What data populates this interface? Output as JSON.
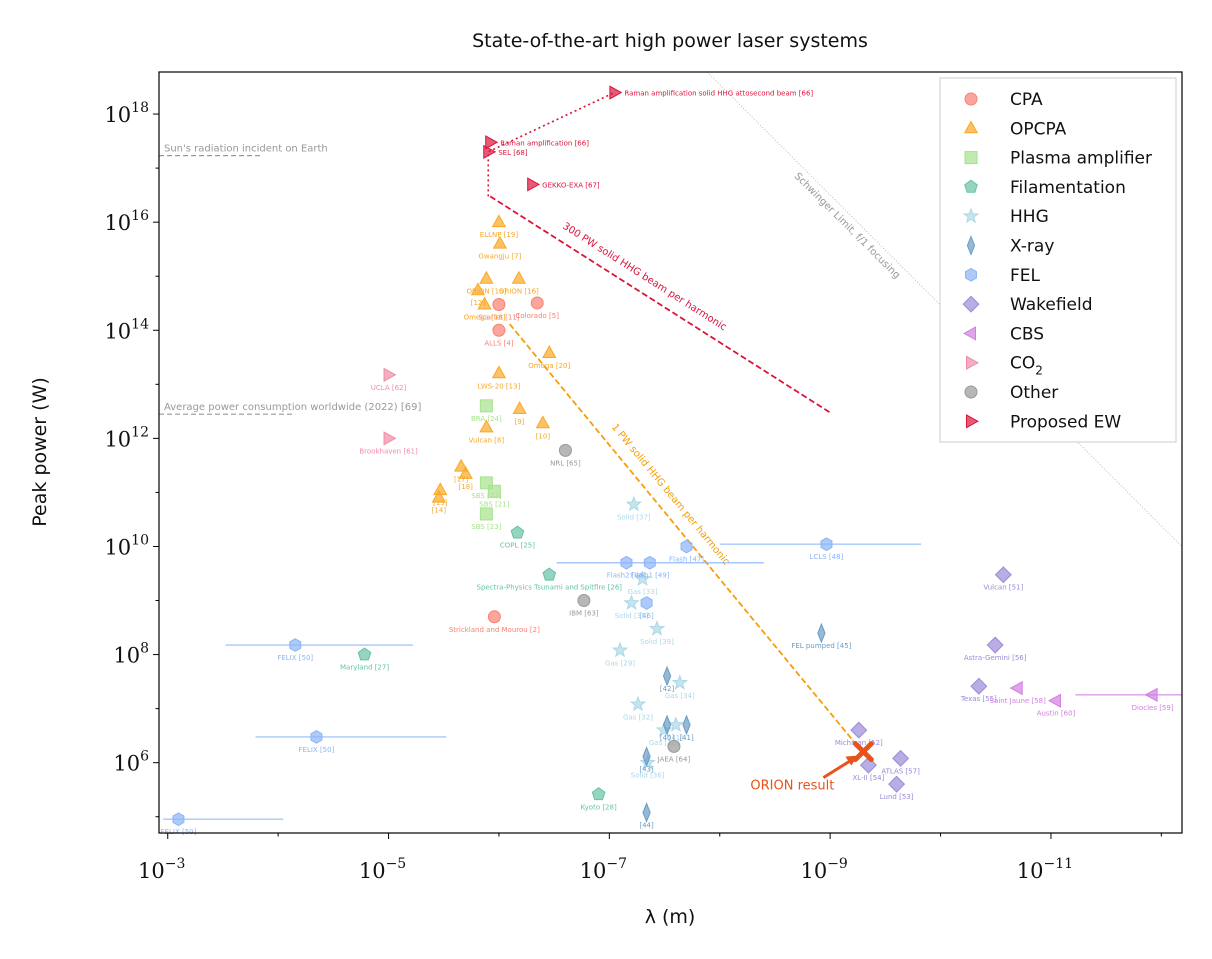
{
  "chart_data": {
    "type": "scatter",
    "title": "State-of-the-art high power laser systems",
    "xlabel": "λ (m)",
    "ylabel": "Peak power (W)",
    "x_scale": "log",
    "x_reversed": true,
    "xlim": [
      0.0012,
      6.5e-13
    ],
    "y_scale": "log",
    "ylim": [
      50000.0,
      6e+18
    ],
    "x_ticks": [
      {
        "base": "10",
        "exp": "−3",
        "v": 0.001
      },
      {
        "base": "10",
        "exp": "−5",
        "v": 1e-05
      },
      {
        "base": "10",
        "exp": "−7",
        "v": 1e-07
      },
      {
        "base": "10",
        "exp": "−9",
        "v": 1e-09
      },
      {
        "base": "10",
        "exp": "−11",
        "v": 1e-11
      }
    ],
    "y_ticks": [
      {
        "base": "10",
        "exp": "6",
        "v": 1000000.0
      },
      {
        "base": "10",
        "exp": "8",
        "v": 100000000.0
      },
      {
        "base": "10",
        "exp": "10",
        "v": 10000000000.0
      },
      {
        "base": "10",
        "exp": "12",
        "v": 1000000000000.0
      },
      {
        "base": "10",
        "exp": "14",
        "v": 100000000000000.0
      },
      {
        "base": "10",
        "exp": "16",
        "v": 1e+16
      },
      {
        "base": "10",
        "exp": "18",
        "v": 1e+18
      }
    ],
    "grid": false,
    "legend_position": "upper right",
    "series": [
      {
        "name": "CPA",
        "sub": "",
        "color": "#fa8072",
        "marker": "circle",
        "points": [
          {
            "x": 1e-06,
            "y": 300000000000000.0,
            "label": "Scarlet [11]"
          },
          {
            "x": 4.5e-07,
            "y": 320000000000000.0,
            "label": "Colorado [5]"
          },
          {
            "x": 1e-06,
            "y": 100000000000000.0,
            "label": "ALLS [4]"
          },
          {
            "x": 1.1e-06,
            "y": 500000000.0,
            "label": "Strickland and Mourou [2]"
          }
        ]
      },
      {
        "name": "OPCPA",
        "sub": "",
        "color": "#f9a825",
        "marker": "triangle",
        "points": [
          {
            "x": 1e-06,
            "y": 1e+16,
            "label": "ELLNP [19]"
          },
          {
            "x": 9.8e-07,
            "y": 4000000000000000.0,
            "label": "Gwangju [7]"
          },
          {
            "x": 1.3e-06,
            "y": 900000000000000.0,
            "label": "ORION [15]"
          },
          {
            "x": 6.6e-07,
            "y": 900000000000000.0,
            "label": "ORION [16]"
          },
          {
            "x": 1.55e-06,
            "y": 550000000000000.0,
            "label": "[12]"
          },
          {
            "x": 1.35e-06,
            "y": 300000000000000.0,
            "label": "Omega [18]"
          },
          {
            "x": 3.5e-07,
            "y": 38000000000000.0,
            "label": "Omega [20]"
          },
          {
            "x": 1e-06,
            "y": 16000000000000.0,
            "label": "LWS-20 [13]"
          },
          {
            "x": 6.5e-07,
            "y": 3500000000000.0,
            "label": "[9]"
          },
          {
            "x": 1.3e-06,
            "y": 1600000000000.0,
            "label": "Vulcan [8]"
          },
          {
            "x": 4e-07,
            "y": 1900000000000.0,
            "label": "[10]"
          },
          {
            "x": 2.2e-06,
            "y": 300000000000.0,
            "label": "[17]"
          },
          {
            "x": 2e-06,
            "y": 220000000000.0,
            "label": "[18]"
          },
          {
            "x": 3.4e-06,
            "y": 110000000000.0,
            "label": "[13]"
          },
          {
            "x": 3.5e-06,
            "y": 80000000000.0,
            "label": "[14]"
          }
        ]
      },
      {
        "name": "Plasma amplifier",
        "sub": "",
        "color": "#a6e28c",
        "marker": "square",
        "points": [
          {
            "x": 1.3e-06,
            "y": 4000000000000.0,
            "label": "BRA [24]"
          },
          {
            "x": 1.3e-06,
            "y": 150000000000.0,
            "label": "SBS [22]"
          },
          {
            "x": 1.1e-06,
            "y": 105000000000.0,
            "label": "SBS [21]"
          },
          {
            "x": 1.3e-06,
            "y": 40000000000.0,
            "label": "SBS [23]"
          }
        ]
      },
      {
        "name": "Filamentation",
        "sub": "",
        "color": "#66c2a5",
        "marker": "pentagon",
        "points": [
          {
            "x": 6.8e-07,
            "y": 18000000000.0,
            "label": "COPL [25]"
          },
          {
            "x": 3.5e-07,
            "y": 3000000000.0,
            "label": "Spectra-Physics Tsunami and Spitfire [26]"
          },
          {
            "x": 1.65e-05,
            "y": 100000000.0,
            "label": "Maryland [27]"
          },
          {
            "x": 1.25e-07,
            "y": 260000.0,
            "label": "Kyoto [28]"
          }
        ]
      },
      {
        "name": "HHG",
        "sub": "",
        "color": "#add8e6",
        "marker": "star",
        "points": [
          {
            "x": 6e-08,
            "y": 60000000000.0,
            "label": "Solid [37]"
          },
          {
            "x": 5e-08,
            "y": 2500000000.0,
            "label": "Gas [33]"
          },
          {
            "x": 6.3e-08,
            "y": 900000000.0,
            "label": "Solid [35]"
          },
          {
            "x": 3.7e-08,
            "y": 300000000.0,
            "label": "Solid [39]"
          },
          {
            "x": 8e-08,
            "y": 120000000.0,
            "label": "Gas [29]"
          },
          {
            "x": 2.3e-08,
            "y": 30000000.0,
            "label": "Gas [34]"
          },
          {
            "x": 5.5e-08,
            "y": 12000000.0,
            "label": "Gas [32]"
          },
          {
            "x": 3.2e-08,
            "y": 4000000.0,
            "label": "Gas [30]"
          },
          {
            "x": 2.5e-08,
            "y": 5000000.0,
            "label": "[41]"
          },
          {
            "x": 4.5e-08,
            "y": 1000000.0,
            "label": "Solid [36]"
          }
        ]
      },
      {
        "name": "X-ray",
        "sub": "",
        "color": "#6a9bc3",
        "marker": "thin_diamond",
        "points": [
          {
            "x": 1.2e-09,
            "y": 250000000.0,
            "label": "FEL pumped [45]"
          },
          {
            "x": 3e-08,
            "y": 40000000.0,
            "label": "[42]"
          },
          {
            "x": 3e-08,
            "y": 5000000.0,
            "label": "[40]"
          },
          {
            "x": 2e-08,
            "y": 5000000.0,
            "label": "[41]"
          },
          {
            "x": 4.6e-08,
            "y": 1300000.0,
            "label": "[43]"
          },
          {
            "x": 4.6e-08,
            "y": 120000.0,
            "label": "[44]"
          }
        ]
      },
      {
        "name": "FEL",
        "sub": "",
        "color": "#8ab4f8",
        "marker": "hexagon",
        "points": [
          {
            "x": 1.08e-09,
            "y": 11000000000.0,
            "xerr": [
              1e-08,
              1.5e-10
            ],
            "label": "LCLS [48]"
          },
          {
            "x": 2e-08,
            "y": 10000000000.0,
            "label": "Flash [47]"
          },
          {
            "x": 4.3e-08,
            "y": 5000000000.0,
            "label": "Flash1 [49]"
          },
          {
            "x": 7e-08,
            "y": 5000000000.0,
            "xerr": [
              3e-07,
              4e-09
            ],
            "label": "Flash2 [46]"
          },
          {
            "x": 4.6e-08,
            "y": 900000000.0,
            "label": "[46]"
          },
          {
            "x": 7e-05,
            "y": 150000000.0,
            "xerr": [
              0.0003,
              6e-06
            ],
            "label": "FELIX [50]"
          },
          {
            "x": 4.5e-05,
            "y": 3000000.0,
            "xerr": [
              0.00016,
              3e-06
            ],
            "label": "FELIX [50]"
          },
          {
            "x": 0.0008,
            "y": 90000.0,
            "xerr": [
              0.0011,
              9e-05
            ],
            "label": "FELIX [50]"
          }
        ]
      },
      {
        "name": "Wakefield",
        "sub": "",
        "color": "#9b8ad8",
        "marker": "diamond",
        "points": [
          {
            "x": 2.7e-11,
            "y": 3000000000.0,
            "label": "Vulcan [51]"
          },
          {
            "x": 3.2e-11,
            "y": 150000000.0,
            "label": "Astra-Gemini [56]"
          },
          {
            "x": 4.5e-11,
            "y": 26000000.0,
            "label": "Texas [55]"
          },
          {
            "x": 5.5e-10,
            "y": 4000000.0,
            "label": "Michigan [52]"
          },
          {
            "x": 2.3e-10,
            "y": 1200000.0,
            "label": "ATLAS [57]"
          },
          {
            "x": 4.5e-10,
            "y": 900000.0,
            "label": "XL-II [54]"
          },
          {
            "x": 2.5e-10,
            "y": 400000.0,
            "label": "Lund [53]"
          }
        ]
      },
      {
        "name": "CBS",
        "sub": "",
        "color": "#d17ee0",
        "marker": "triangle_left",
        "points": [
          {
            "x": 2e-11,
            "y": 24000000.0,
            "label": "Saint Jaune [58]"
          },
          {
            "x": 9e-12,
            "y": 14000000.0,
            "label": "Austin [60]"
          },
          {
            "x": 1.2e-12,
            "y": 18000000.0,
            "xerr": [
              6e-12,
              6.5e-13
            ],
            "label": "Diocles [59]"
          }
        ]
      },
      {
        "name": "CO",
        "sub": "2",
        "color": "#f08ca8",
        "marker": "triangle_right",
        "points": [
          {
            "x": 1e-05,
            "y": 15000000000000.0,
            "label": "UCLA [62]"
          },
          {
            "x": 1e-05,
            "y": 1000000000000.0,
            "label": "Brookhaven [61]"
          }
        ]
      },
      {
        "name": "Other",
        "sub": "",
        "color": "#999999",
        "marker": "circle",
        "points": [
          {
            "x": 2.5e-07,
            "y": 600000000000.0,
            "label": "NRL [65]"
          },
          {
            "x": 1.7e-07,
            "y": 1000000000.0,
            "label": "IBM [63]"
          },
          {
            "x": 2.6e-08,
            "y": 2000000.0,
            "label": "JAEA [64]"
          }
        ]
      },
      {
        "name": "Proposed EW",
        "sub": "",
        "color": "#dc143c",
        "marker": "triangle_right",
        "points": [
          {
            "x": 9e-08,
            "y": 2.5e+18,
            "label": "Raman amplification solid HHG attosecond beam [66]"
          },
          {
            "x": 1.2e-06,
            "y": 3e+17,
            "label": "Raman amplification [66]"
          },
          {
            "x": 1.25e-06,
            "y": 2e+17,
            "label": "SEL [68]"
          },
          {
            "x": 5e-07,
            "y": 5e+16,
            "label": "GEKKO-EXA [67]"
          }
        ]
      }
    ],
    "orion_result": {
      "label": "ORION result",
      "x": 5e-10,
      "y": 1600000.0,
      "color": "#e8531c"
    },
    "trend_lines": [
      {
        "label": "300 PW solid HHG beam per harmonic",
        "color": "#dc143c",
        "x": [
          1.2e-06,
          1e-09
        ],
        "y": [
          3e+16,
          3000000000000.0
        ]
      },
      {
        "label": "1 PW solid HHG beam per harmonic",
        "color": "#f59e0b",
        "x": [
          8e-07,
          5e-10
        ],
        "y": [
          130000000000000.0,
          1500000.0
        ]
      },
      {
        "label": "Schwinger Limit, f/1 focusing",
        "color": "#b5b5b5",
        "x": [
          1.3e-08,
          6.5e-13
        ],
        "y": [
          6e+18,
          10000000000.0
        ]
      }
    ],
    "reference_lines": [
      {
        "label": "Sun's radiation incident on Earth",
        "y": 1.7e+17,
        "x": [
          0.0012,
          0.00014
        ]
      },
      {
        "label": "Average power consumption worldwide (2022) [69]",
        "y": 2800000000000.0,
        "x": [
          0.0012,
          7e-05
        ]
      }
    ]
  }
}
